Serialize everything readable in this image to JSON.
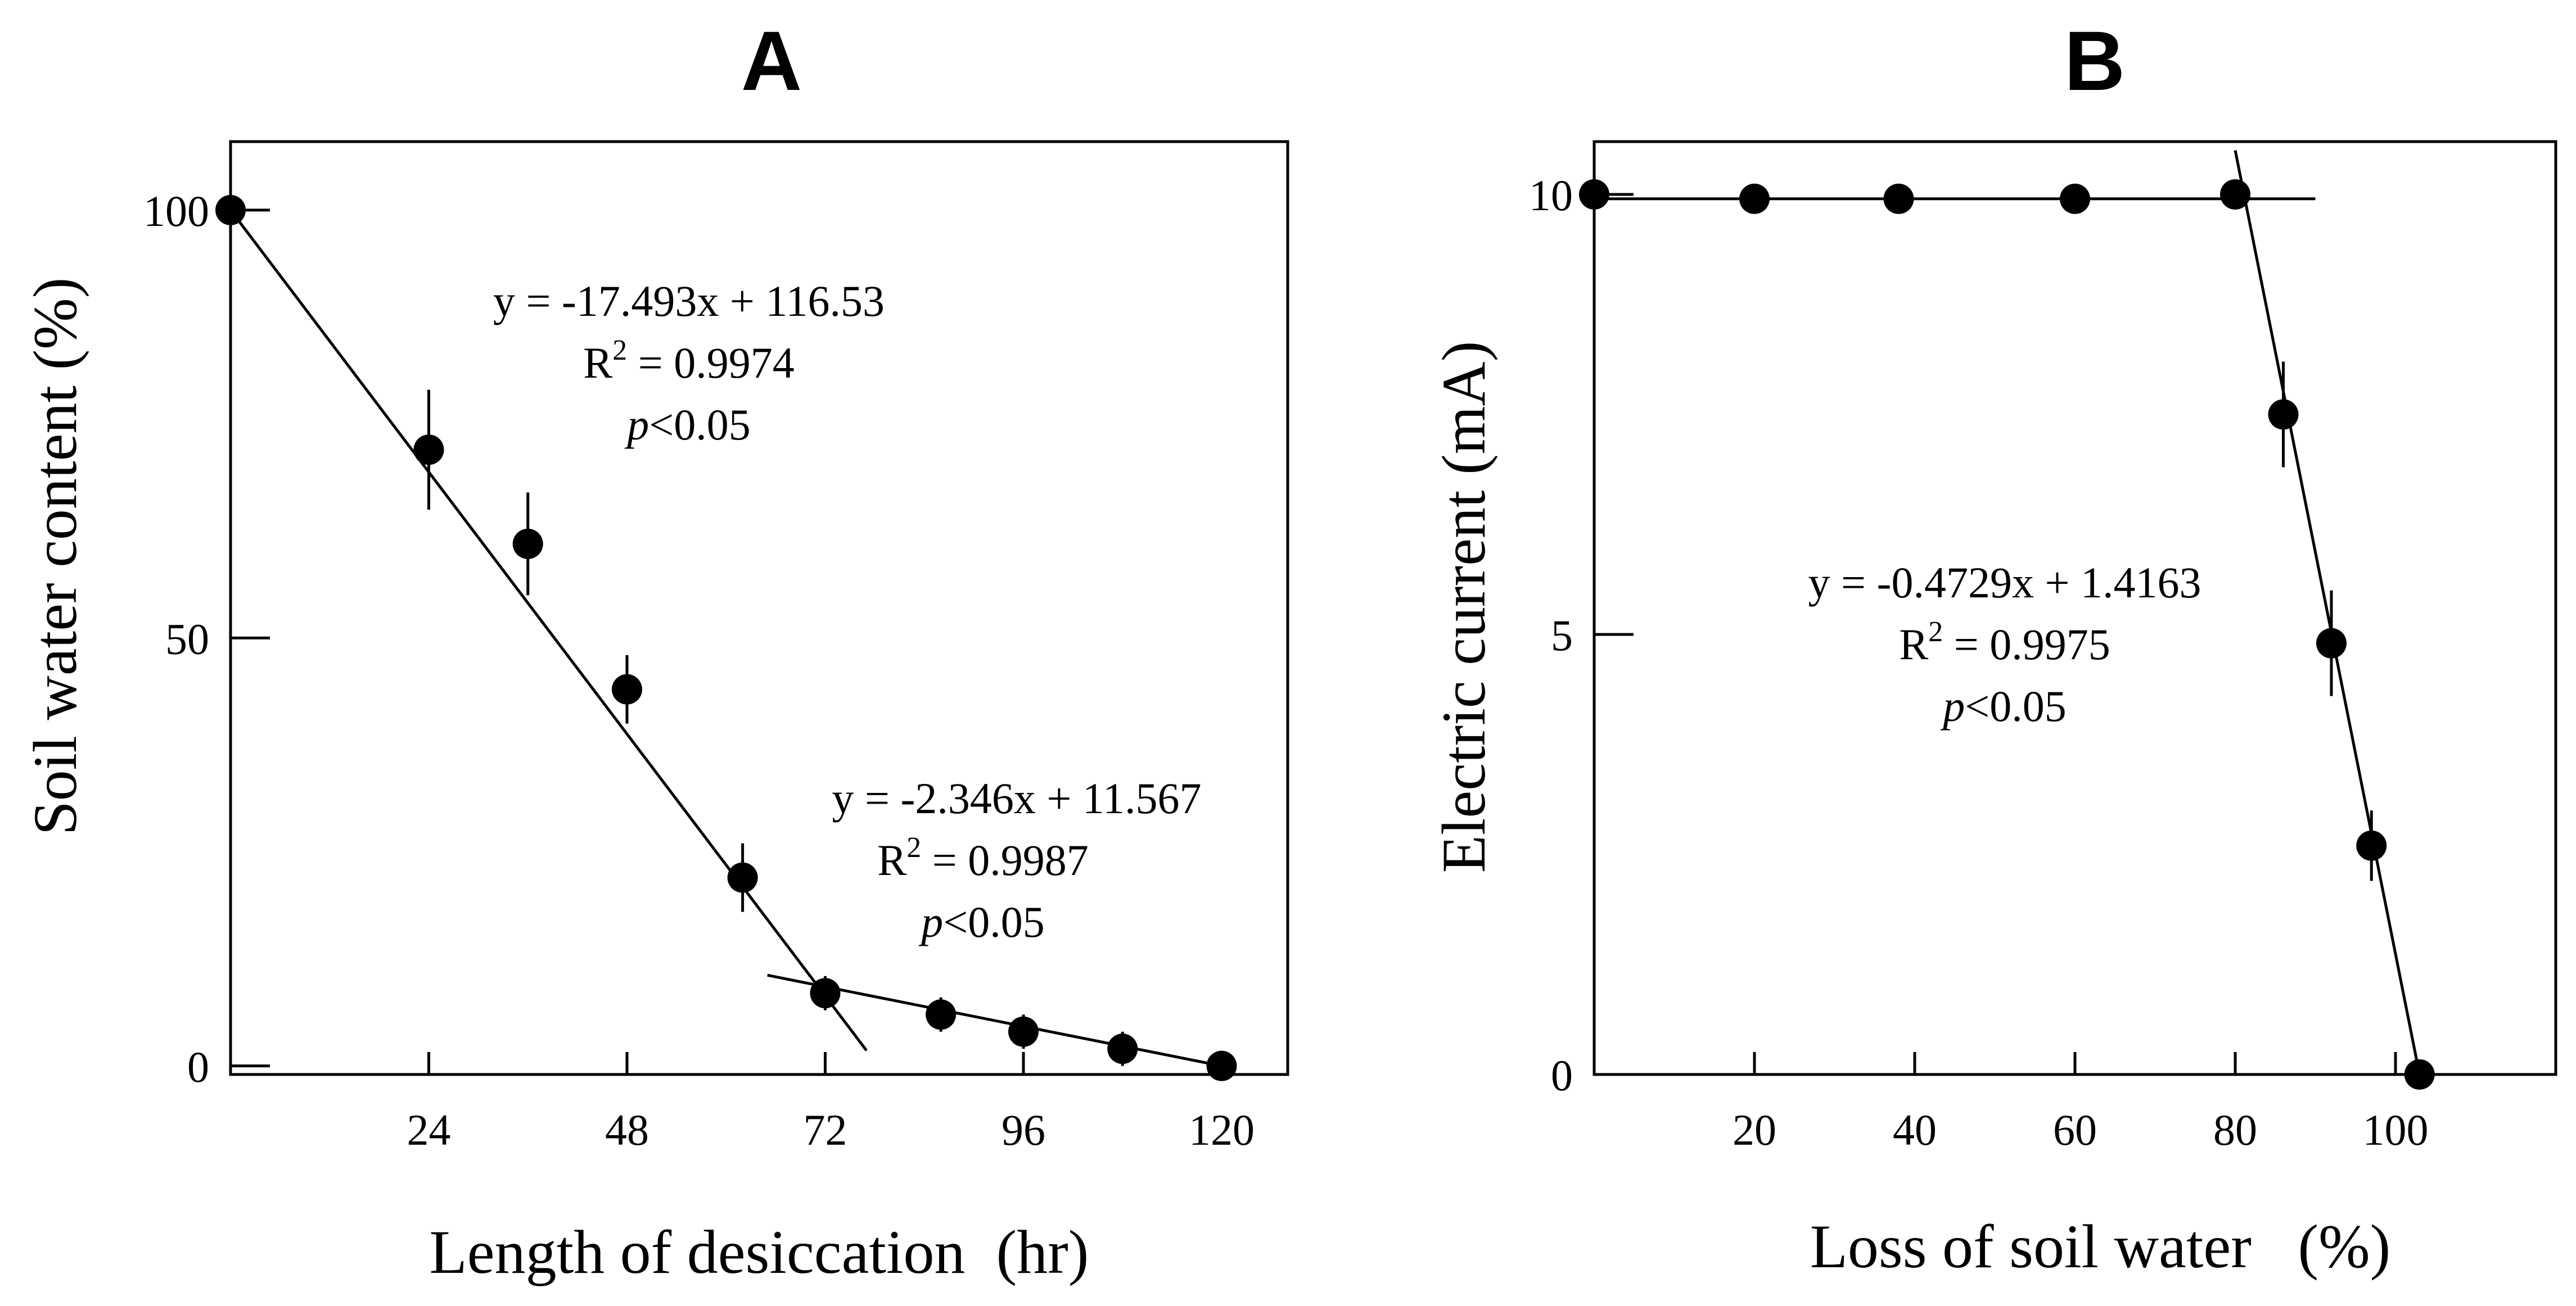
{
  "chart_data": [
    {
      "type": "scatter",
      "title": "A",
      "xlabel": "Length of desiccation  (hr)",
      "ylabel": "Soil water content (%)",
      "xlim": [
        0,
        128
      ],
      "ylim": [
        -1,
        108
      ],
      "xticks": [
        24,
        48,
        72,
        96,
        120
      ],
      "xtick_labels": [
        "24",
        "48",
        "72",
        "96",
        "120"
      ],
      "yticks": [
        0,
        50,
        100
      ],
      "ytick_labels": [
        "0",
        "50",
        "100"
      ],
      "grid": false,
      "series": [
        {
          "x": [
            0,
            24,
            36,
            48,
            62,
            72,
            86,
            96,
            108,
            120
          ],
          "y": [
            100,
            72,
            61,
            44,
            22,
            8.5,
            6,
            4,
            2,
            0
          ],
          "err": [
            0,
            7,
            6,
            4,
            4,
            2,
            2,
            2,
            2,
            0
          ]
        }
      ],
      "fit_lines": [
        {
          "x0": 0,
          "x1": 77,
          "y0": 100,
          "y1": 1.8
        },
        {
          "x0": 65,
          "x1": 120,
          "y0": 10.6,
          "y1": 0
        }
      ],
      "annotations": [
        {
          "lines": [
            "y = -17.493x + 116.53",
            "R2 = 0.9974",
            "p<0.05"
          ]
        },
        {
          "lines": [
            "y = -2.346x + 11.567",
            "R2 = 0.9987",
            "p<0.05"
          ]
        }
      ]
    },
    {
      "type": "scatter",
      "title": "B",
      "xlabel": "Loss of soil water   (%)",
      "ylabel": "Electric current (mA)",
      "xlim": [
        0,
        120
      ],
      "ylim": [
        0,
        10.6
      ],
      "xticks": [
        20,
        40,
        60,
        80,
        100
      ],
      "xtick_labels": [
        "20",
        "40",
        "60",
        "80",
        "100"
      ],
      "yticks": [
        0,
        5,
        10
      ],
      "ytick_labels": [
        "0",
        "5",
        "10"
      ],
      "grid": false,
      "series": [
        {
          "x": [
            0,
            20,
            38,
            60,
            80,
            86,
            92,
            97,
            103
          ],
          "y": [
            10,
            9.95,
            9.95,
            9.95,
            10,
            7.5,
            4.9,
            2.6,
            0
          ],
          "err": [
            0,
            0,
            0,
            0,
            0,
            0.6,
            0.6,
            0.4,
            0
          ]
        }
      ],
      "fit_lines": [
        {
          "x0": 0,
          "x1": 90,
          "y0": 9.95,
          "y1": 9.95
        },
        {
          "x0": 80,
          "x1": 103,
          "y0": 10.5,
          "y1": 0
        }
      ],
      "annotations": [
        {
          "lines": [
            "y = -0.4729x + 1.4163",
            "R2 = 0.9975",
            "p<0.05"
          ]
        }
      ]
    }
  ]
}
